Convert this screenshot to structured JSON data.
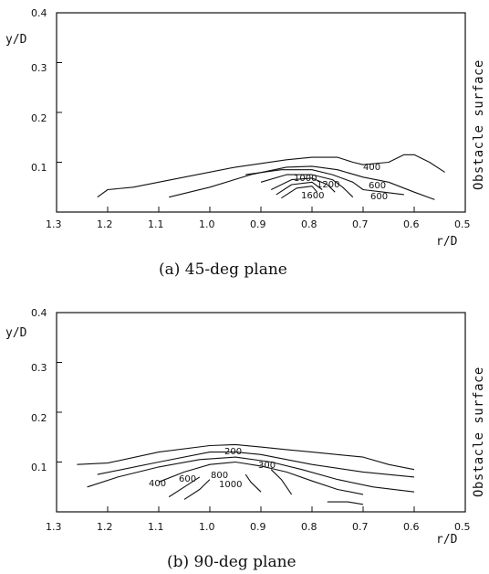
{
  "chart_data": [
    {
      "type": "line",
      "subtype": "contour",
      "caption": "(a) 45-deg plane",
      "xlabel": "r/D",
      "ylabel": "y/D",
      "side_label": "Obstacle surface",
      "xlim": [
        1.3,
        0.5
      ],
      "ylim": [
        0.0,
        0.4
      ],
      "x_ticks": [
        "1.3",
        "1.2",
        "1.1",
        "1.0",
        "0.9",
        "0.8",
        "0.7",
        "0.6",
        "0.5"
      ],
      "y_ticks": [
        "0.1",
        "0.2",
        "0.3",
        "0.4"
      ],
      "contour_labels": [
        "400",
        "600",
        "600",
        "1000",
        "1200",
        "1600"
      ],
      "series": [
        {
          "points": [
            [
              1.22,
              0.03
            ],
            [
              1.2,
              0.045
            ],
            [
              1.15,
              0.05
            ],
            [
              1.05,
              0.07
            ],
            [
              0.95,
              0.09
            ],
            [
              0.85,
              0.105
            ],
            [
              0.8,
              0.11
            ],
            [
              0.75,
              0.11
            ],
            [
              0.72,
              0.1
            ],
            [
              0.7,
              0.095
            ],
            [
              0.65,
              0.1
            ],
            [
              0.62,
              0.115
            ],
            [
              0.6,
              0.115
            ],
            [
              0.57,
              0.1
            ],
            [
              0.54,
              0.08
            ]
          ]
        },
        {
          "points": [
            [
              1.08,
              0.03
            ],
            [
              1.0,
              0.05
            ],
            [
              0.92,
              0.075
            ],
            [
              0.85,
              0.09
            ],
            [
              0.8,
              0.092
            ],
            [
              0.75,
              0.085
            ],
            [
              0.7,
              0.07
            ],
            [
              0.65,
              0.06
            ],
            [
              0.6,
              0.04
            ],
            [
              0.56,
              0.025
            ]
          ]
        },
        {
          "points": [
            [
              0.93,
              0.075
            ],
            [
              0.86,
              0.085
            ],
            [
              0.8,
              0.085
            ],
            [
              0.76,
              0.075
            ],
            [
              0.72,
              0.06
            ],
            [
              0.7,
              0.045
            ],
            [
              0.66,
              0.04
            ],
            [
              0.62,
              0.035
            ]
          ]
        },
        {
          "points": [
            [
              0.9,
              0.06
            ],
            [
              0.85,
              0.075
            ],
            [
              0.8,
              0.075
            ],
            [
              0.76,
              0.065
            ],
            [
              0.74,
              0.05
            ],
            [
              0.72,
              0.03
            ]
          ]
        },
        {
          "points": [
            [
              0.88,
              0.045
            ],
            [
              0.84,
              0.065
            ],
            [
              0.8,
              0.068
            ],
            [
              0.77,
              0.055
            ],
            [
              0.755,
              0.04
            ]
          ]
        },
        {
          "points": [
            [
              0.87,
              0.035
            ],
            [
              0.84,
              0.055
            ],
            [
              0.8,
              0.06
            ],
            [
              0.78,
              0.045
            ]
          ]
        },
        {
          "points": [
            [
              0.86,
              0.028
            ],
            [
              0.83,
              0.048
            ],
            [
              0.8,
              0.052
            ],
            [
              0.79,
              0.04
            ]
          ]
        }
      ]
    },
    {
      "type": "line",
      "subtype": "contour",
      "caption": "(b) 90-deg plane",
      "xlabel": "r/D",
      "ylabel": "y/D",
      "side_label": "Obstacle surface",
      "xlim": [
        1.3,
        0.5
      ],
      "ylim": [
        0.0,
        0.4
      ],
      "x_ticks": [
        "1.3",
        "1.2",
        "1.1",
        "1.0",
        "0.9",
        "0.8",
        "0.7",
        "0.6",
        "0.5"
      ],
      "y_ticks": [
        "0.1",
        "0.2",
        "0.3",
        "0.4"
      ],
      "contour_labels": [
        "200",
        "300",
        "400",
        "600",
        "800",
        "1000"
      ],
      "series": [
        {
          "points": [
            [
              1.26,
              0.095
            ],
            [
              1.2,
              0.098
            ],
            [
              1.1,
              0.12
            ],
            [
              1.0,
              0.133
            ],
            [
              0.95,
              0.135
            ],
            [
              0.9,
              0.13
            ],
            [
              0.85,
              0.125
            ],
            [
              0.8,
              0.12
            ],
            [
              0.7,
              0.11
            ],
            [
              0.65,
              0.095
            ],
            [
              0.6,
              0.085
            ]
          ]
        },
        {
          "points": [
            [
              1.22,
              0.075
            ],
            [
              1.1,
              0.1
            ],
            [
              1.0,
              0.12
            ],
            [
              0.95,
              0.12
            ],
            [
              0.9,
              0.115
            ],
            [
              0.8,
              0.095
            ],
            [
              0.7,
              0.08
            ],
            [
              0.6,
              0.07
            ]
          ]
        },
        {
          "points": [
            [
              1.24,
              0.05
            ],
            [
              1.18,
              0.07
            ],
            [
              1.1,
              0.09
            ],
            [
              1.02,
              0.105
            ],
            [
              0.95,
              0.11
            ],
            [
              0.88,
              0.1
            ],
            [
              0.82,
              0.085
            ],
            [
              0.75,
              0.065
            ],
            [
              0.68,
              0.05
            ],
            [
              0.6,
              0.04
            ]
          ]
        },
        {
          "points": [
            [
              1.1,
              0.06
            ],
            [
              1.05,
              0.08
            ],
            [
              1.0,
              0.095
            ],
            [
              0.95,
              0.1
            ],
            [
              0.9,
              0.092
            ],
            [
              0.85,
              0.08
            ],
            [
              0.8,
              0.062
            ],
            [
              0.75,
              0.045
            ],
            [
              0.7,
              0.035
            ]
          ]
        },
        {
          "points": [
            [
              1.08,
              0.03
            ],
            [
              1.05,
              0.05
            ],
            [
              1.02,
              0.07
            ]
          ]
        },
        {
          "points": [
            [
              1.05,
              0.025
            ],
            [
              1.02,
              0.045
            ],
            [
              1.0,
              0.065
            ]
          ]
        },
        {
          "points": [
            [
              0.93,
              0.075
            ],
            [
              0.92,
              0.06
            ],
            [
              0.9,
              0.04
            ]
          ]
        },
        {
          "points": [
            [
              0.88,
              0.085
            ],
            [
              0.86,
              0.065
            ],
            [
              0.84,
              0.035
            ]
          ]
        },
        {
          "points": [
            [
              0.77,
              0.02
            ],
            [
              0.73,
              0.02
            ],
            [
              0.7,
              0.015
            ]
          ]
        }
      ]
    }
  ]
}
